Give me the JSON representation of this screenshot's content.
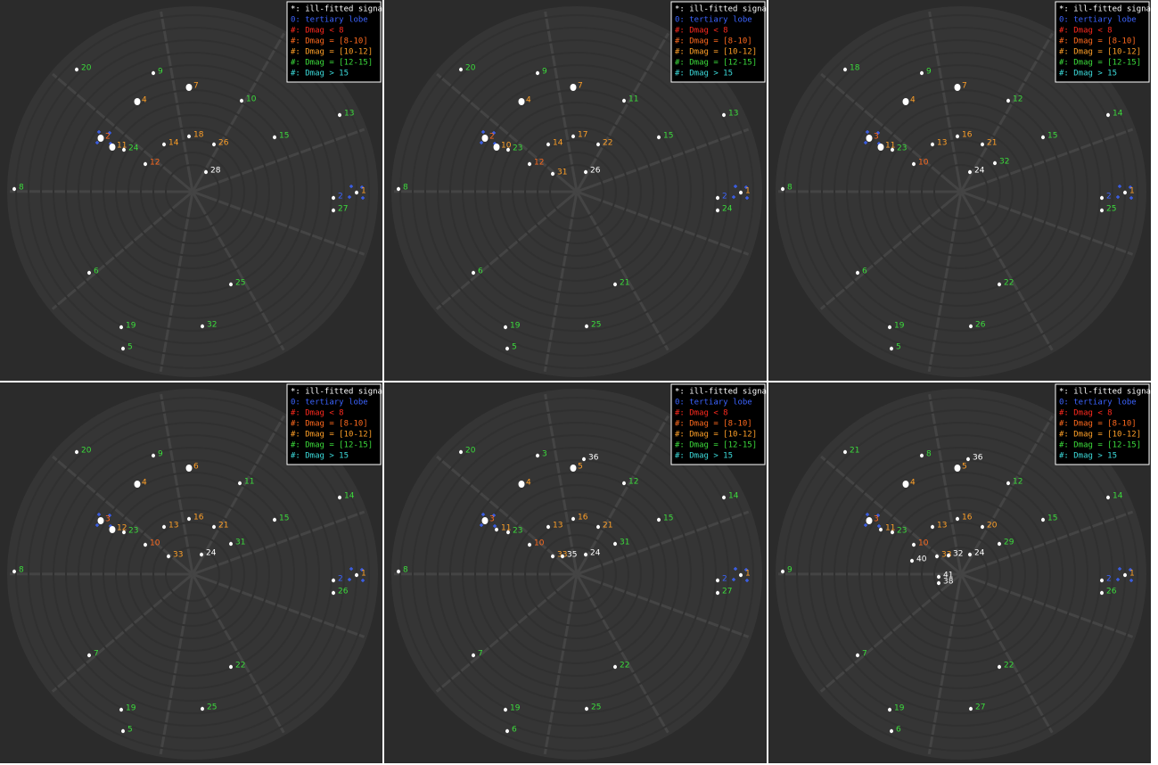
{
  "legend": [
    {
      "text": "*: ill-fitted signal",
      "color": "#ffffff"
    },
    {
      "text": "0: tertiary lobe",
      "color": "#3c64ff"
    },
    {
      "text": "#: Dmag < 8",
      "color": "#ff2a1e"
    },
    {
      "text": "#: Dmag = [8-10]",
      "color": "#ff6a1e"
    },
    {
      "text": "#: Dmag = [10-12]",
      "color": "#ffa028"
    },
    {
      "text": "#: Dmag = [12-15]",
      "color": "#3cdc3c"
    },
    {
      "text": "#: Dmag > 15",
      "color": "#3cdcdc"
    }
  ],
  "panels": [
    {
      "sources": [
        {
          "label": "20",
          "color": "#3cdc3c"
        },
        {
          "label": "9",
          "color": "#3cdc3c"
        },
        {
          "label": "7",
          "color": "#ffa028"
        },
        {
          "label": "4",
          "color": "#ffa028"
        },
        {
          "label": "10",
          "color": "#3cdc3c"
        },
        {
          "label": "13",
          "color": "#3cdc3c"
        },
        {
          "label": "2",
          "color": "#ff6a1e"
        },
        {
          "label": "11",
          "color": "#ffa028"
        },
        {
          "label": "24",
          "color": "#3cdc3c"
        },
        {
          "label": "14",
          "color": "#ffa028"
        },
        {
          "label": "18",
          "color": "#ffa028"
        },
        {
          "label": "26",
          "color": "#ffa028"
        },
        {
          "label": "15",
          "color": "#3cdc3c"
        },
        {
          "label": "12",
          "color": "#ff6a1e"
        },
        {
          "label": "28",
          "color": "#ffffff"
        },
        {
          "label": "8",
          "color": "#3cdc3c"
        },
        {
          "label": "1",
          "color": "#ffa028"
        },
        {
          "label": "2",
          "color": "#3c64ff"
        },
        {
          "label": "27",
          "color": "#3cdc3c"
        },
        {
          "label": "6",
          "color": "#3cdc3c"
        },
        {
          "label": "25",
          "color": "#3cdc3c"
        },
        {
          "label": "19",
          "color": "#3cdc3c"
        },
        {
          "label": "32",
          "color": "#3cdc3c"
        },
        {
          "label": "5",
          "color": "#3cdc3c"
        }
      ]
    },
    {
      "sources": [
        {
          "label": "20",
          "color": "#3cdc3c"
        },
        {
          "label": "9",
          "color": "#3cdc3c"
        },
        {
          "label": "7",
          "color": "#ffa028"
        },
        {
          "label": "4",
          "color": "#ffa028"
        },
        {
          "label": "11",
          "color": "#3cdc3c"
        },
        {
          "label": "13",
          "color": "#3cdc3c"
        },
        {
          "label": "2",
          "color": "#ff6a1e"
        },
        {
          "label": "10",
          "color": "#ffa028"
        },
        {
          "label": "23",
          "color": "#3cdc3c"
        },
        {
          "label": "14",
          "color": "#ffa028"
        },
        {
          "label": "17",
          "color": "#ffa028"
        },
        {
          "label": "22",
          "color": "#ffa028"
        },
        {
          "label": "15",
          "color": "#3cdc3c"
        },
        {
          "label": "12",
          "color": "#ff6a1e"
        },
        {
          "label": "31",
          "color": "#ffa028"
        },
        {
          "label": "26",
          "color": "#ffffff"
        },
        {
          "label": "8",
          "color": "#3cdc3c"
        },
        {
          "label": "1",
          "color": "#ffa028"
        },
        {
          "label": "2",
          "color": "#3c64ff"
        },
        {
          "label": "24",
          "color": "#3cdc3c"
        },
        {
          "label": "6",
          "color": "#3cdc3c"
        },
        {
          "label": "21",
          "color": "#3cdc3c"
        },
        {
          "label": "19",
          "color": "#3cdc3c"
        },
        {
          "label": "25",
          "color": "#3cdc3c"
        },
        {
          "label": "5",
          "color": "#3cdc3c"
        }
      ]
    },
    {
      "sources": [
        {
          "label": "18",
          "color": "#3cdc3c"
        },
        {
          "label": "9",
          "color": "#3cdc3c"
        },
        {
          "label": "7",
          "color": "#ffa028"
        },
        {
          "label": "4",
          "color": "#ffa028"
        },
        {
          "label": "12",
          "color": "#3cdc3c"
        },
        {
          "label": "14",
          "color": "#3cdc3c"
        },
        {
          "label": "3",
          "color": "#ff6a1e"
        },
        {
          "label": "11",
          "color": "#ffa028"
        },
        {
          "label": "23",
          "color": "#3cdc3c"
        },
        {
          "label": "13",
          "color": "#ffa028"
        },
        {
          "label": "16",
          "color": "#ffa028"
        },
        {
          "label": "21",
          "color": "#ffa028"
        },
        {
          "label": "15",
          "color": "#3cdc3c"
        },
        {
          "label": "10",
          "color": "#ff6a1e"
        },
        {
          "label": "32",
          "color": "#3cdc3c"
        },
        {
          "label": "24",
          "color": "#ffffff"
        },
        {
          "label": "8",
          "color": "#3cdc3c"
        },
        {
          "label": "1",
          "color": "#ffa028"
        },
        {
          "label": "2",
          "color": "#3c64ff"
        },
        {
          "label": "25",
          "color": "#3cdc3c"
        },
        {
          "label": "6",
          "color": "#3cdc3c"
        },
        {
          "label": "22",
          "color": "#3cdc3c"
        },
        {
          "label": "19",
          "color": "#3cdc3c"
        },
        {
          "label": "26",
          "color": "#3cdc3c"
        },
        {
          "label": "5",
          "color": "#3cdc3c"
        }
      ]
    },
    {
      "sources": [
        {
          "label": "20",
          "color": "#3cdc3c"
        },
        {
          "label": "9",
          "color": "#3cdc3c"
        },
        {
          "label": "6",
          "color": "#ffa028"
        },
        {
          "label": "4",
          "color": "#ffa028"
        },
        {
          "label": "11",
          "color": "#3cdc3c"
        },
        {
          "label": "14",
          "color": "#3cdc3c"
        },
        {
          "label": "3",
          "color": "#ff6a1e"
        },
        {
          "label": "12",
          "color": "#ffa028"
        },
        {
          "label": "23",
          "color": "#3cdc3c"
        },
        {
          "label": "13",
          "color": "#ffa028"
        },
        {
          "label": "16",
          "color": "#ffa028"
        },
        {
          "label": "21",
          "color": "#ffa028"
        },
        {
          "label": "15",
          "color": "#3cdc3c"
        },
        {
          "label": "10",
          "color": "#ff6a1e"
        },
        {
          "label": "33",
          "color": "#ffa028"
        },
        {
          "label": "31",
          "color": "#3cdc3c"
        },
        {
          "label": "24",
          "color": "#ffffff"
        },
        {
          "label": "8",
          "color": "#3cdc3c"
        },
        {
          "label": "1",
          "color": "#ffa028"
        },
        {
          "label": "2",
          "color": "#3c64ff"
        },
        {
          "label": "26",
          "color": "#3cdc3c"
        },
        {
          "label": "7",
          "color": "#3cdc3c"
        },
        {
          "label": "22",
          "color": "#3cdc3c"
        },
        {
          "label": "19",
          "color": "#3cdc3c"
        },
        {
          "label": "25",
          "color": "#3cdc3c"
        },
        {
          "label": "5",
          "color": "#3cdc3c"
        }
      ]
    },
    {
      "sources": [
        {
          "label": "20",
          "color": "#3cdc3c"
        },
        {
          "label": "3",
          "color": "#3cdc3c"
        },
        {
          "label": "5",
          "color": "#ffa028"
        },
        {
          "label": "36",
          "color": "#ffffff"
        },
        {
          "label": "4",
          "color": "#ffa028"
        },
        {
          "label": "12",
          "color": "#3cdc3c"
        },
        {
          "label": "14",
          "color": "#3cdc3c"
        },
        {
          "label": "3",
          "color": "#ff6a1e"
        },
        {
          "label": "11",
          "color": "#ffa028"
        },
        {
          "label": "23",
          "color": "#3cdc3c"
        },
        {
          "label": "13",
          "color": "#ffa028"
        },
        {
          "label": "16",
          "color": "#ffa028"
        },
        {
          "label": "21",
          "color": "#ffa028"
        },
        {
          "label": "15",
          "color": "#3cdc3c"
        },
        {
          "label": "10",
          "color": "#ff6a1e"
        },
        {
          "label": "31",
          "color": "#3cdc3c"
        },
        {
          "label": "33",
          "color": "#ffa028"
        },
        {
          "label": "35",
          "color": "#ffffff"
        },
        {
          "label": "24",
          "color": "#ffffff"
        },
        {
          "label": "8",
          "color": "#3cdc3c"
        },
        {
          "label": "1",
          "color": "#ffa028"
        },
        {
          "label": "2",
          "color": "#3c64ff"
        },
        {
          "label": "27",
          "color": "#3cdc3c"
        },
        {
          "label": "7",
          "color": "#3cdc3c"
        },
        {
          "label": "22",
          "color": "#3cdc3c"
        },
        {
          "label": "19",
          "color": "#3cdc3c"
        },
        {
          "label": "25",
          "color": "#3cdc3c"
        },
        {
          "label": "6",
          "color": "#3cdc3c"
        }
      ]
    },
    {
      "sources": [
        {
          "label": "21",
          "color": "#3cdc3c"
        },
        {
          "label": "8",
          "color": "#3cdc3c"
        },
        {
          "label": "5",
          "color": "#ffa028"
        },
        {
          "label": "36",
          "color": "#ffffff"
        },
        {
          "label": "4",
          "color": "#ffa028"
        },
        {
          "label": "12",
          "color": "#3cdc3c"
        },
        {
          "label": "14",
          "color": "#3cdc3c"
        },
        {
          "label": "3",
          "color": "#ff6a1e"
        },
        {
          "label": "11",
          "color": "#ffa028"
        },
        {
          "label": "23",
          "color": "#3cdc3c"
        },
        {
          "label": "13",
          "color": "#ffa028"
        },
        {
          "label": "16",
          "color": "#ffa028"
        },
        {
          "label": "20",
          "color": "#ffa028"
        },
        {
          "label": "15",
          "color": "#3cdc3c"
        },
        {
          "label": "10",
          "color": "#ff6a1e"
        },
        {
          "label": "29",
          "color": "#3cdc3c"
        },
        {
          "label": "33",
          "color": "#ffa028"
        },
        {
          "label": "32",
          "color": "#ffffff"
        },
        {
          "label": "24",
          "color": "#ffffff"
        },
        {
          "label": "40",
          "color": "#ffffff"
        },
        {
          "label": "41",
          "color": "#ffffff"
        },
        {
          "label": "38",
          "color": "#ffffff"
        },
        {
          "label": "9",
          "color": "#3cdc3c"
        },
        {
          "label": "1",
          "color": "#ffa028"
        },
        {
          "label": "2",
          "color": "#3c64ff"
        },
        {
          "label": "26",
          "color": "#3cdc3c"
        },
        {
          "label": "7",
          "color": "#3cdc3c"
        },
        {
          "label": "22",
          "color": "#3cdc3c"
        },
        {
          "label": "19",
          "color": "#3cdc3c"
        },
        {
          "label": "27",
          "color": "#3cdc3c"
        },
        {
          "label": "6",
          "color": "#3cdc3c"
        }
      ]
    }
  ]
}
